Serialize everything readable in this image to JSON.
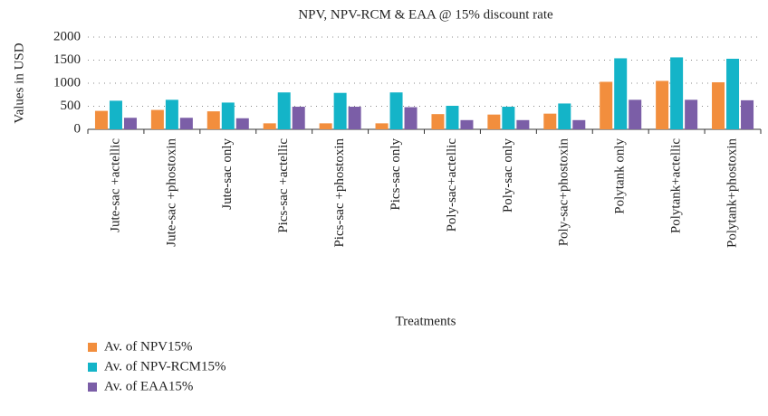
{
  "chart_data": {
    "type": "bar",
    "title": "NPV, NPV-RCM & EAA @ 15% discount rate",
    "x_label": "Treatments",
    "y_label": "Values in USD",
    "categories": [
      "Jute-sac +actellic",
      "Jute-sac +phostoxin",
      "Jute-sac only",
      "Pics-sac +actellic",
      "Pics-sac +phostoxin",
      "Pics-sac only",
      "Poly-sac+actellic",
      "Poly-sac only",
      "Poly-sac+phostoxin",
      "Polytank only",
      "Polytank+actellic",
      "Polytank+phostoxin"
    ],
    "series": [
      {
        "name": "Av. of NPV15%",
        "color": "#f28e3d",
        "values": [
          400,
          420,
          390,
          130,
          130,
          130,
          330,
          320,
          340,
          1030,
          1050,
          1020
        ]
      },
      {
        "name": "Av. of NPV-RCM15%",
        "color": "#14b4c8",
        "values": [
          620,
          640,
          580,
          800,
          790,
          800,
          510,
          490,
          560,
          1540,
          1560,
          1530
        ]
      },
      {
        "name": "Av. of EAA15%",
        "color": "#7b5ea7",
        "values": [
          250,
          250,
          240,
          490,
          490,
          480,
          200,
          200,
          200,
          640,
          640,
          630
        ]
      }
    ],
    "ylim": [
      0,
      2000
    ],
    "yticks": [
      0,
      500,
      1000,
      1500,
      2000
    ],
    "grid": true,
    "legend": "bottom-left"
  }
}
